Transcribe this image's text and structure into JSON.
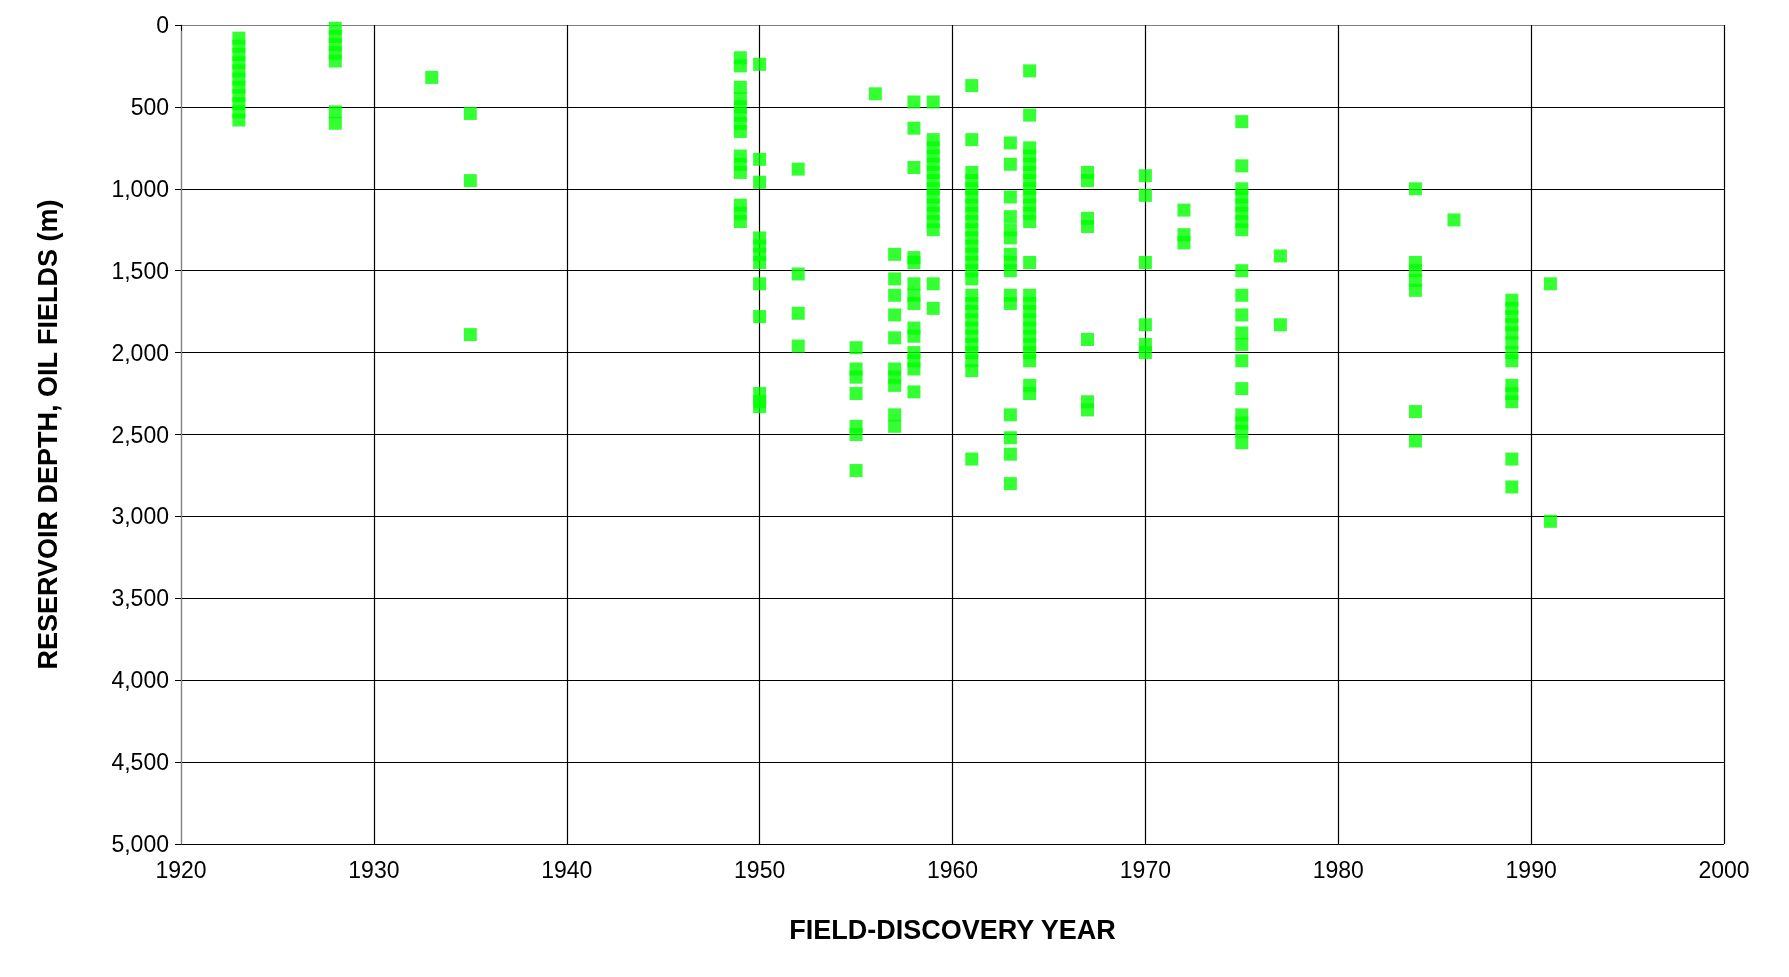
{
  "chart_data": {
    "type": "scatter",
    "xlabel": "FIELD-DISCOVERY YEAR",
    "ylabel": "RESERVOIR DEPTH, OIL FIELDS (m)",
    "xlim": [
      1920,
      2000
    ],
    "xticks": [
      1920,
      1930,
      1940,
      1950,
      1960,
      1970,
      1980,
      1990,
      2000
    ],
    "ylim": [
      5000,
      0
    ],
    "yticks": [
      0,
      500,
      {
        "value": 1000,
        "label": "1,000"
      },
      {
        "value": 1500,
        "label": "1,500"
      },
      {
        "value": 2000,
        "label": "2,000"
      },
      {
        "value": 2500,
        "label": "2,500"
      },
      {
        "value": 3000,
        "label": "3,000"
      },
      {
        "value": 3500,
        "label": "3,500"
      },
      {
        "value": 4000,
        "label": "4,000"
      },
      {
        "value": 4500,
        "label": "4,500"
      },
      {
        "value": 5000,
        "label": "5,000"
      }
    ],
    "grid": true,
    "marker": "square",
    "series": [
      {
        "color": "#00ff00",
        "x": [
          1923,
          1923,
          1923,
          1923,
          1923,
          1923,
          1923,
          1923,
          1923,
          1923,
          1923,
          1928,
          1928,
          1928,
          1928,
          1928,
          1928,
          1928,
          1933,
          1935,
          1935,
          1935,
          1949,
          1949,
          1949,
          1949,
          1949,
          1949,
          1949,
          1949,
          1949,
          1949,
          1949,
          1949,
          1949,
          1949,
          1950,
          1950,
          1950,
          1950,
          1950,
          1950,
          1950,
          1950,
          1950,
          1950,
          1950,
          1950,
          1952,
          1952,
          1952,
          1952,
          1955,
          1955,
          1955,
          1955,
          1955,
          1955,
          1955,
          1956,
          1957,
          1957,
          1957,
          1957,
          1957,
          1957,
          1957,
          1957,
          1957,
          1957,
          1958,
          1958,
          1958,
          1958,
          1958,
          1958,
          1958,
          1958,
          1958,
          1958,
          1958,
          1958,
          1958,
          1958,
          1959,
          1959,
          1959,
          1959,
          1959,
          1959,
          1959,
          1959,
          1959,
          1959,
          1959,
          1959,
          1959,
          1959,
          1959,
          1961,
          1961,
          1961,
          1961,
          1961,
          1961,
          1961,
          1961,
          1961,
          1961,
          1961,
          1961,
          1961,
          1961,
          1961,
          1961,
          1961,
          1961,
          1961,
          1961,
          1961,
          1961,
          1961,
          1961,
          1961,
          1961,
          1961,
          1963,
          1963,
          1963,
          1963,
          1963,
          1963,
          1963,
          1963,
          1963,
          1963,
          1963,
          1963,
          1963,
          1963,
          1963,
          1964,
          1964,
          1964,
          1964,
          1964,
          1964,
          1964,
          1964,
          1964,
          1964,
          1964,
          1964,
          1964,
          1964,
          1964,
          1964,
          1964,
          1964,
          1964,
          1964,
          1964,
          1964,
          1964,
          1964,
          1967,
          1967,
          1967,
          1967,
          1967,
          1967,
          1967,
          1970,
          1970,
          1970,
          1970,
          1970,
          1970,
          1972,
          1972,
          1972,
          1975,
          1975,
          1975,
          1975,
          1975,
          1975,
          1975,
          1975,
          1975,
          1975,
          1975,
          1975,
          1975,
          1975,
          1975,
          1975,
          1975,
          1975,
          1975,
          1977,
          1977,
          1984,
          1984,
          1984,
          1984,
          1984,
          1984,
          1984,
          1986,
          1989,
          1989,
          1989,
          1989,
          1989,
          1989,
          1989,
          1989,
          1989,
          1989,
          1989,
          1989,
          1989,
          1991,
          1991
        ],
        "values": [
          80,
          130,
          180,
          230,
          280,
          330,
          380,
          430,
          480,
          530,
          580,
          20,
          70,
          120,
          170,
          220,
          530,
          600,
          320,
          540,
          950,
          1890,
          200,
          250,
          380,
          450,
          500,
          550,
          600,
          650,
          800,
          850,
          900,
          1100,
          1150,
          1200,
          240,
          820,
          960,
          1300,
          1350,
          1400,
          1450,
          1580,
          1780,
          2250,
          2300,
          2330,
          880,
          1520,
          1760,
          1960,
          1970,
          2100,
          2150,
          2250,
          2450,
          2500,
          2720,
          420,
          1400,
          1550,
          1650,
          1770,
          1910,
          2100,
          2150,
          2200,
          2380,
          2450,
          470,
          630,
          870,
          1420,
          1450,
          1580,
          1650,
          1700,
          1850,
          1900,
          2000,
          2050,
          2100,
          2240,
          470,
          700,
          750,
          800,
          850,
          900,
          950,
          1000,
          1050,
          1100,
          1150,
          1200,
          1250,
          1580,
          1730,
          370,
          700,
          900,
          950,
          1000,
          1050,
          1100,
          1150,
          1200,
          1250,
          1300,
          1350,
          1400,
          1450,
          1500,
          1550,
          1650,
          1700,
          1750,
          1800,
          1850,
          1900,
          1950,
          2000,
          2050,
          2110,
          2650,
          720,
          850,
          1050,
          1170,
          1250,
          1300,
          1400,
          1450,
          1500,
          1650,
          1700,
          2380,
          2520,
          2620,
          2800,
          280,
          550,
          750,
          800,
          850,
          900,
          950,
          1000,
          1050,
          1100,
          1150,
          1200,
          1450,
          1650,
          1700,
          1750,
          1800,
          1850,
          1900,
          1950,
          2000,
          2050,
          2200,
          2250,
          900,
          950,
          1180,
          1230,
          1920,
          2300,
          2350,
          920,
          1040,
          1450,
          1830,
          1950,
          2000,
          1130,
          1280,
          1330,
          590,
          860,
          1000,
          1050,
          1100,
          1150,
          1200,
          1250,
          1500,
          1650,
          1770,
          1880,
          1950,
          2050,
          2220,
          2380,
          2430,
          2480,
          2550,
          1410,
          1830,
          1000,
          1450,
          1500,
          1560,
          1620,
          2360,
          2540,
          1190,
          1680,
          1730,
          1780,
          1830,
          1880,
          1940,
          2000,
          2050,
          2200,
          2250,
          2300,
          2650,
          2820,
          1580,
          3030
        ]
      }
    ]
  }
}
